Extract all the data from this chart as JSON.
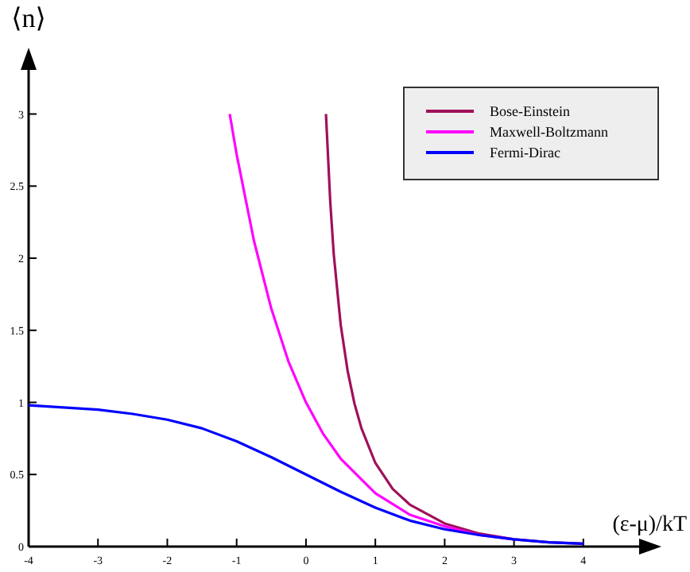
{
  "chart_data": {
    "type": "line",
    "xlabel": "(ε-μ)/kT",
    "ylabel": "⟨n⟩",
    "xlim": [
      -4,
      4.85
    ],
    "ylim": [
      0,
      3.35
    ],
    "xticks": [
      -4,
      -3,
      -2,
      -1,
      0,
      1,
      2,
      3,
      4
    ],
    "yticks": [
      0,
      0.5,
      1,
      1.5,
      2,
      2.5,
      3
    ],
    "grid": false,
    "legend": "top right",
    "marker": "none",
    "line_style": "solid",
    "series": [
      {
        "name": "Bose-Einstein",
        "color": "#a0105a",
        "x": [
          0.288,
          0.35,
          0.4,
          0.5,
          0.6,
          0.7,
          0.8,
          1,
          1.25,
          1.5,
          2,
          2.5,
          3,
          3.5,
          4
        ],
        "values": [
          3,
          2.39,
          2.03,
          1.54,
          1.22,
          0.99,
          0.82,
          0.58,
          0.4,
          0.29,
          0.16,
          0.09,
          0.05,
          0.03,
          0.02
        ]
      },
      {
        "name": "Maxwell-Boltzmann",
        "color": "#ff00ff",
        "x": [
          -1.1,
          -1,
          -0.75,
          -0.5,
          -0.25,
          0,
          0.25,
          0.5,
          1,
          1.5,
          2,
          2.5,
          3
        ],
        "values": [
          3,
          2.72,
          2.12,
          1.65,
          1.28,
          1,
          0.78,
          0.61,
          0.37,
          0.22,
          0.14,
          0.08,
          0.05
        ]
      },
      {
        "name": "Fermi-Dirac",
        "color": "#0000ff",
        "x": [
          -4,
          -3,
          -2.5,
          -2,
          -1.5,
          -1,
          -0.5,
          0,
          0.5,
          1,
          1.5,
          2,
          2.5,
          3,
          3.5,
          4
        ],
        "values": [
          0.98,
          0.95,
          0.92,
          0.88,
          0.82,
          0.73,
          0.62,
          0.5,
          0.38,
          0.27,
          0.18,
          0.12,
          0.08,
          0.05,
          0.03,
          0.02
        ]
      }
    ]
  }
}
